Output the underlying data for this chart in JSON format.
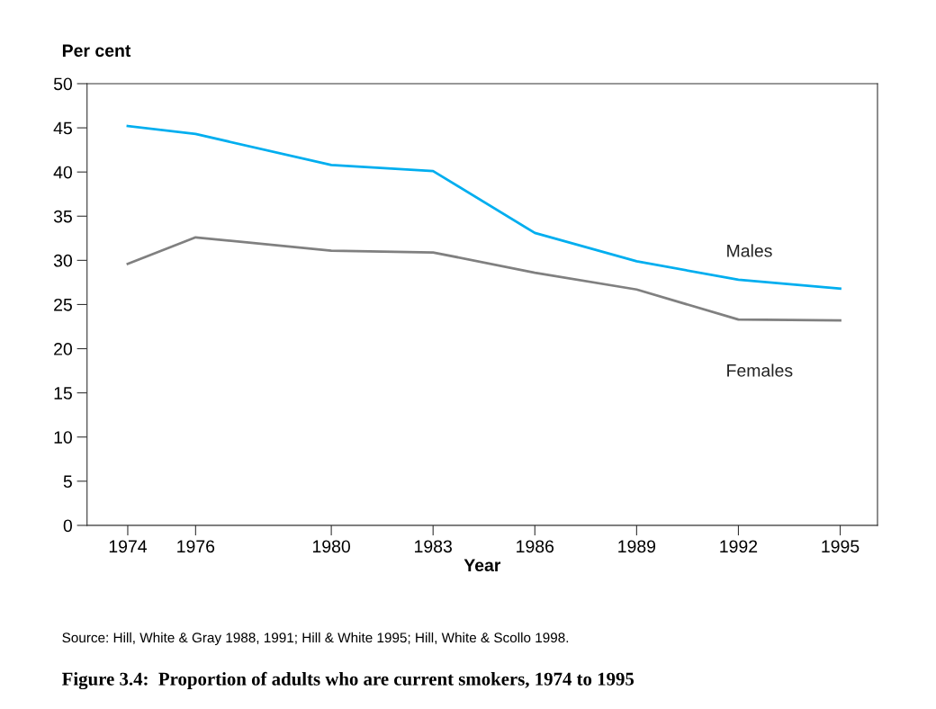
{
  "chart_data": {
    "type": "line",
    "title": "Figure 3.4:  Proportion of adults who are current smokers, 1974 to 1995",
    "xlabel": "Year",
    "ylabel": "Per cent",
    "x": [
      1974,
      1976,
      1980,
      1983,
      1986,
      1989,
      1992,
      1995
    ],
    "series": [
      {
        "name": "Males",
        "color": "#00aeef",
        "values": [
          45.2,
          44.3,
          40.8,
          40.1,
          33.1,
          29.9,
          27.8,
          26.8
        ]
      },
      {
        "name": "Females",
        "color": "#808080",
        "values": [
          29.6,
          32.6,
          31.1,
          30.9,
          28.6,
          26.7,
          23.3,
          23.2
        ]
      }
    ],
    "xlim": [
      1972.8,
      1996.1
    ],
    "xticks": [
      1974,
      1976,
      1980,
      1983,
      1986,
      1989,
      1992,
      1995
    ],
    "ylim": [
      0,
      50
    ],
    "yticks": [
      0,
      5,
      10,
      15,
      20,
      25,
      30,
      35,
      40,
      45,
      50
    ],
    "grid": false,
    "legend": false,
    "marker": "none",
    "line_style": "solid",
    "annotations": [
      "Source: Hill, White & Gray 1988, 1991; Hill & White 1995; Hill, White & Scollo 1998."
    ]
  }
}
